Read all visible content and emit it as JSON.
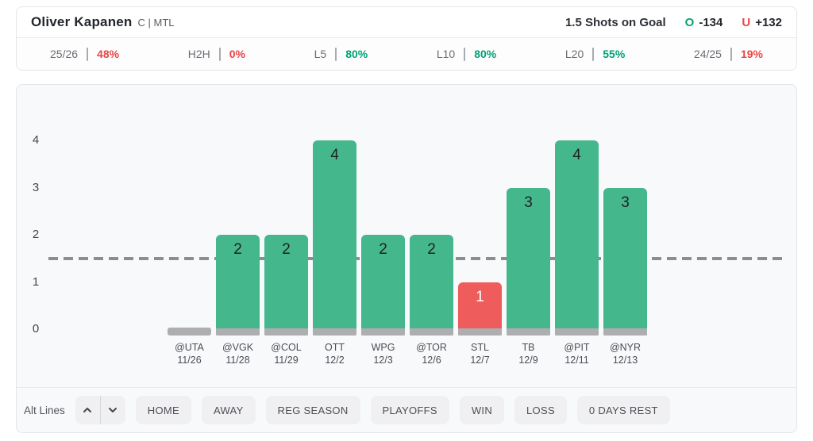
{
  "header": {
    "player_name": "Oliver Kapanen",
    "player_meta": "C | MTL",
    "prop_label": "1.5 Shots on Goal",
    "over_symbol": "O",
    "over_odds": "-134",
    "under_symbol": "U",
    "under_odds": "+132"
  },
  "stats": {
    "items": [
      {
        "label": "25/26",
        "value": "48%",
        "tone": "red"
      },
      {
        "label": "H2H",
        "value": "0%",
        "tone": "red"
      },
      {
        "label": "L5",
        "value": "80%",
        "tone": "green"
      },
      {
        "label": "L10",
        "value": "80%",
        "tone": "green"
      },
      {
        "label": "L20",
        "value": "55%",
        "tone": "green"
      },
      {
        "label": "24/25",
        "value": "19%",
        "tone": "red"
      }
    ]
  },
  "chart_data": {
    "type": "bar",
    "title": "",
    "categories": [
      "@UTA",
      "@VGK",
      "@COL",
      "OTT",
      "WPG",
      "@TOR",
      "STL",
      "TB",
      "@PIT",
      "@NYR"
    ],
    "dates": [
      "11/26",
      "11/28",
      "11/29",
      "12/2",
      "12/3",
      "12/6",
      "12/7",
      "12/9",
      "12/11",
      "12/13"
    ],
    "values": [
      0,
      2,
      2,
      4,
      2,
      2,
      1,
      3,
      4,
      3
    ],
    "bar_colors": [
      "gray",
      "green",
      "green",
      "green",
      "green",
      "green",
      "red",
      "green",
      "green",
      "green"
    ],
    "prop_line": 1.5,
    "ylim": [
      0,
      4
    ],
    "yticks": [
      0,
      1,
      2,
      3,
      4
    ],
    "grid": false,
    "xlabel": "",
    "ylabel": ""
  },
  "controls": {
    "alt_lines_label": "Alt Lines",
    "filters": [
      "HOME",
      "AWAY",
      "REG SEASON",
      "PLAYOFFS",
      "WIN",
      "LOSS",
      "0 DAYS REST"
    ]
  },
  "colors": {
    "bar_green": "#45b78c",
    "bar_red": "#ee5c5c",
    "bar_gray": "#aeaeb1",
    "stat_green": "#00a173",
    "stat_red": "#ee4343",
    "over_green": "#0aa271",
    "under_red": "#e8484a",
    "dashed_line": "#8d8d91"
  }
}
